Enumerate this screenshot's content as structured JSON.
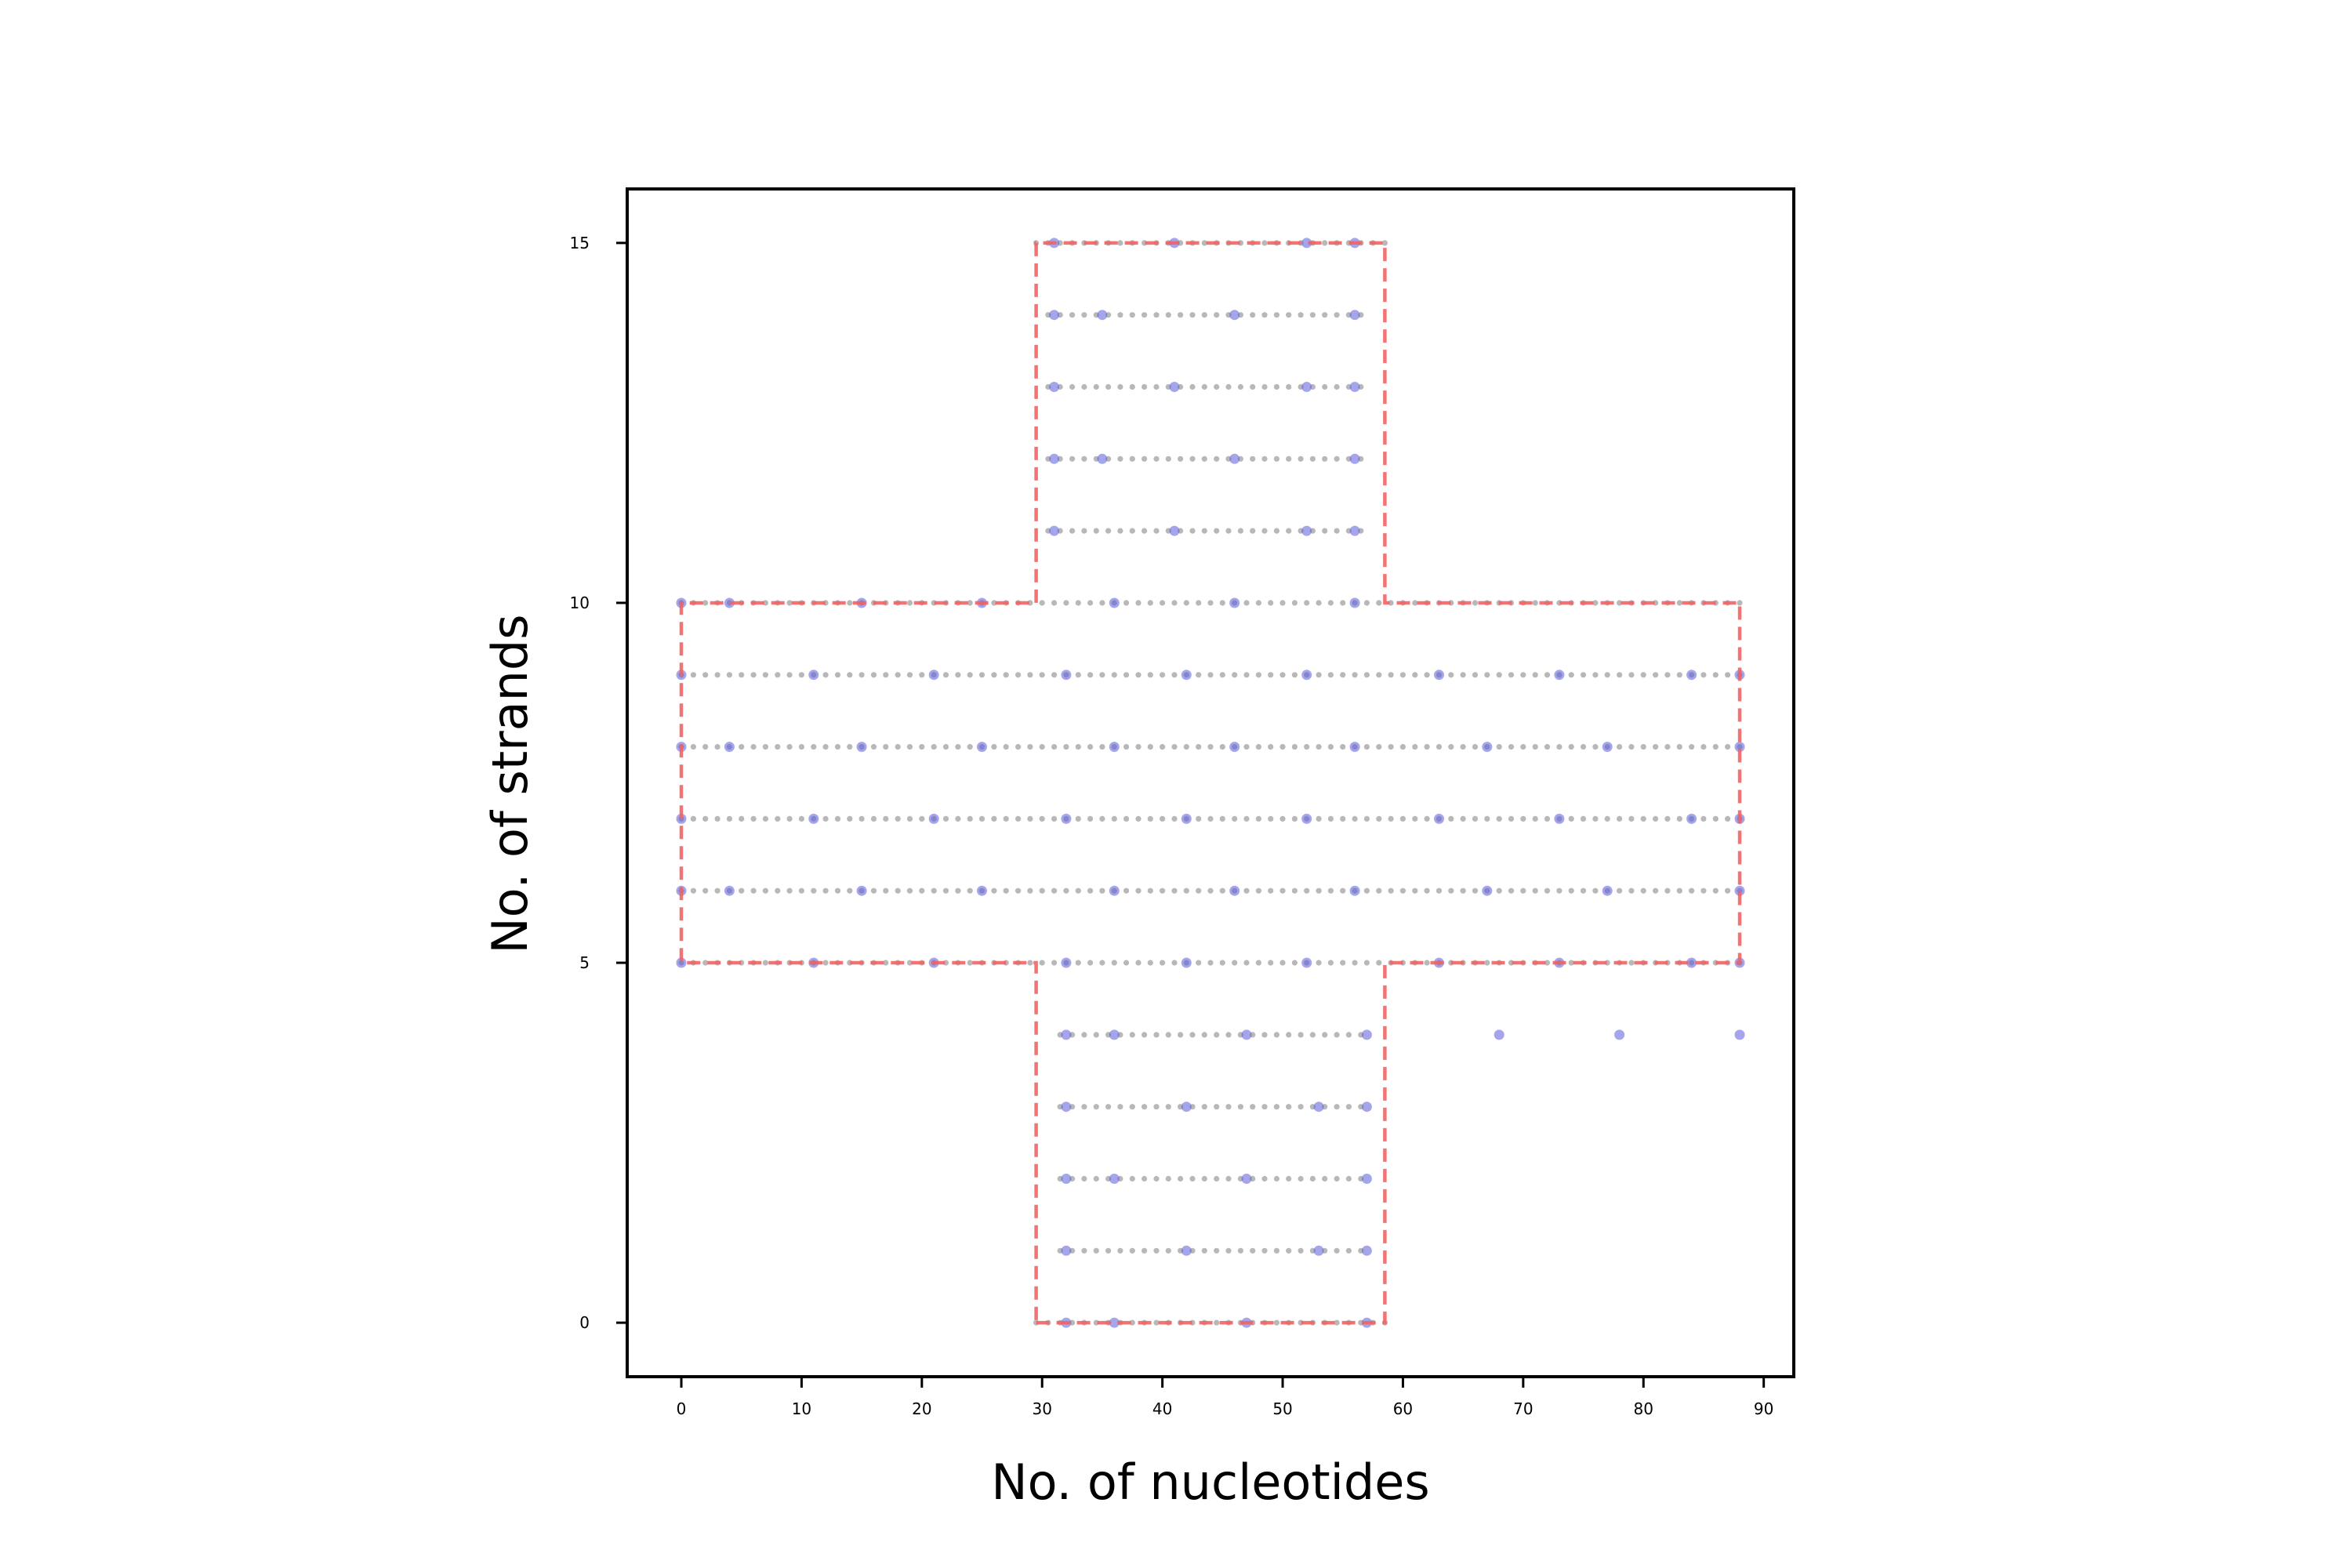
{
  "chart_data": {
    "type": "scatter",
    "title": "",
    "xlabel": "No. of nucleotides",
    "ylabel": "No. of strands",
    "xlim": [
      -4.5,
      92.5
    ],
    "ylim": [
      -0.75,
      15.75
    ],
    "xticks": [
      0,
      10,
      20,
      30,
      40,
      50,
      60,
      70,
      80,
      90
    ],
    "yticks": [
      0,
      5,
      10,
      15
    ],
    "grid": false,
    "legend": "none",
    "colors": {
      "backbone_dots": "#b0b0b0",
      "crossover_dots": "#5b5bdc",
      "outline": "#f06464"
    },
    "series": [
      {
        "kind": "backbone",
        "rows": [
          {
            "y": 0,
            "x_start": 29.5,
            "x_end": 58.5
          },
          {
            "y": 1,
            "x_start": 31.5,
            "x_end": 56.5
          },
          {
            "y": 2,
            "x_start": 31.5,
            "x_end": 56.5
          },
          {
            "y": 3,
            "x_start": 31.5,
            "x_end": 56.5
          },
          {
            "y": 4,
            "x_start": 31.5,
            "x_end": 56.5
          },
          {
            "y": 5,
            "x_start": 0,
            "x_end": 88
          },
          {
            "y": 6,
            "x_start": 0,
            "x_end": 88
          },
          {
            "y": 7,
            "x_start": 0,
            "x_end": 88
          },
          {
            "y": 8,
            "x_start": 0,
            "x_end": 88
          },
          {
            "y": 9,
            "x_start": 0,
            "x_end": 88
          },
          {
            "y": 10,
            "x_start": 0,
            "x_end": 88
          },
          {
            "y": 11,
            "x_start": 30.5,
            "x_end": 57
          },
          {
            "y": 12,
            "x_start": 30.5,
            "x_end": 57
          },
          {
            "y": 13,
            "x_start": 30.5,
            "x_end": 57
          },
          {
            "y": 14,
            "x_start": 30.5,
            "x_end": 57
          },
          {
            "y": 15,
            "x_start": 29.5,
            "x_end": 58.5
          }
        ]
      },
      {
        "kind": "crossovers",
        "points": [
          {
            "y": 0,
            "x": [
              32,
              36,
              47,
              57
            ]
          },
          {
            "y": 1,
            "x": [
              32,
              42,
              53,
              57
            ]
          },
          {
            "y": 2,
            "x": [
              32,
              36,
              47,
              57
            ]
          },
          {
            "y": 3,
            "x": [
              32,
              42,
              53,
              57
            ]
          },
          {
            "y": 4,
            "x": [
              32,
              36,
              47,
              57,
              68,
              78,
              88
            ]
          },
          {
            "y": 5,
            "x": [
              0,
              11,
              21,
              32,
              42,
              52,
              63,
              73,
              84,
              88
            ]
          },
          {
            "y": 6,
            "x": [
              0,
              4,
              15,
              25,
              36,
              46,
              56,
              67,
              77,
              88
            ]
          },
          {
            "y": 7,
            "x": [
              0,
              11,
              21,
              32,
              42,
              52,
              63,
              73,
              84,
              88
            ]
          },
          {
            "y": 8,
            "x": [
              0,
              4,
              15,
              25,
              36,
              46,
              56,
              67,
              77,
              88
            ]
          },
          {
            "y": 9,
            "x": [
              0,
              11,
              21,
              32,
              42,
              52,
              63,
              73,
              84,
              88
            ]
          },
          {
            "y": 10,
            "x": [
              0,
              4,
              15,
              25,
              36,
              46,
              56
            ]
          },
          {
            "y": 11,
            "x": [
              31,
              41,
              52,
              56
            ]
          },
          {
            "y": 12,
            "x": [
              31,
              35,
              46,
              56
            ]
          },
          {
            "y": 13,
            "x": [
              31,
              41,
              52,
              56
            ]
          },
          {
            "y": 14,
            "x": [
              31,
              35,
              46,
              56
            ]
          },
          {
            "y": 15,
            "x": [
              31,
              41,
              52,
              56
            ]
          }
        ]
      },
      {
        "kind": "outline",
        "polygon": [
          [
            29.5,
            0
          ],
          [
            58.5,
            0
          ],
          [
            58.5,
            5
          ],
          [
            88,
            5
          ],
          [
            88,
            10
          ],
          [
            58.5,
            10
          ],
          [
            58.5,
            15
          ],
          [
            29.5,
            15
          ],
          [
            29.5,
            10
          ],
          [
            0,
            10
          ],
          [
            0,
            5
          ],
          [
            29.5,
            5
          ]
        ]
      }
    ]
  }
}
